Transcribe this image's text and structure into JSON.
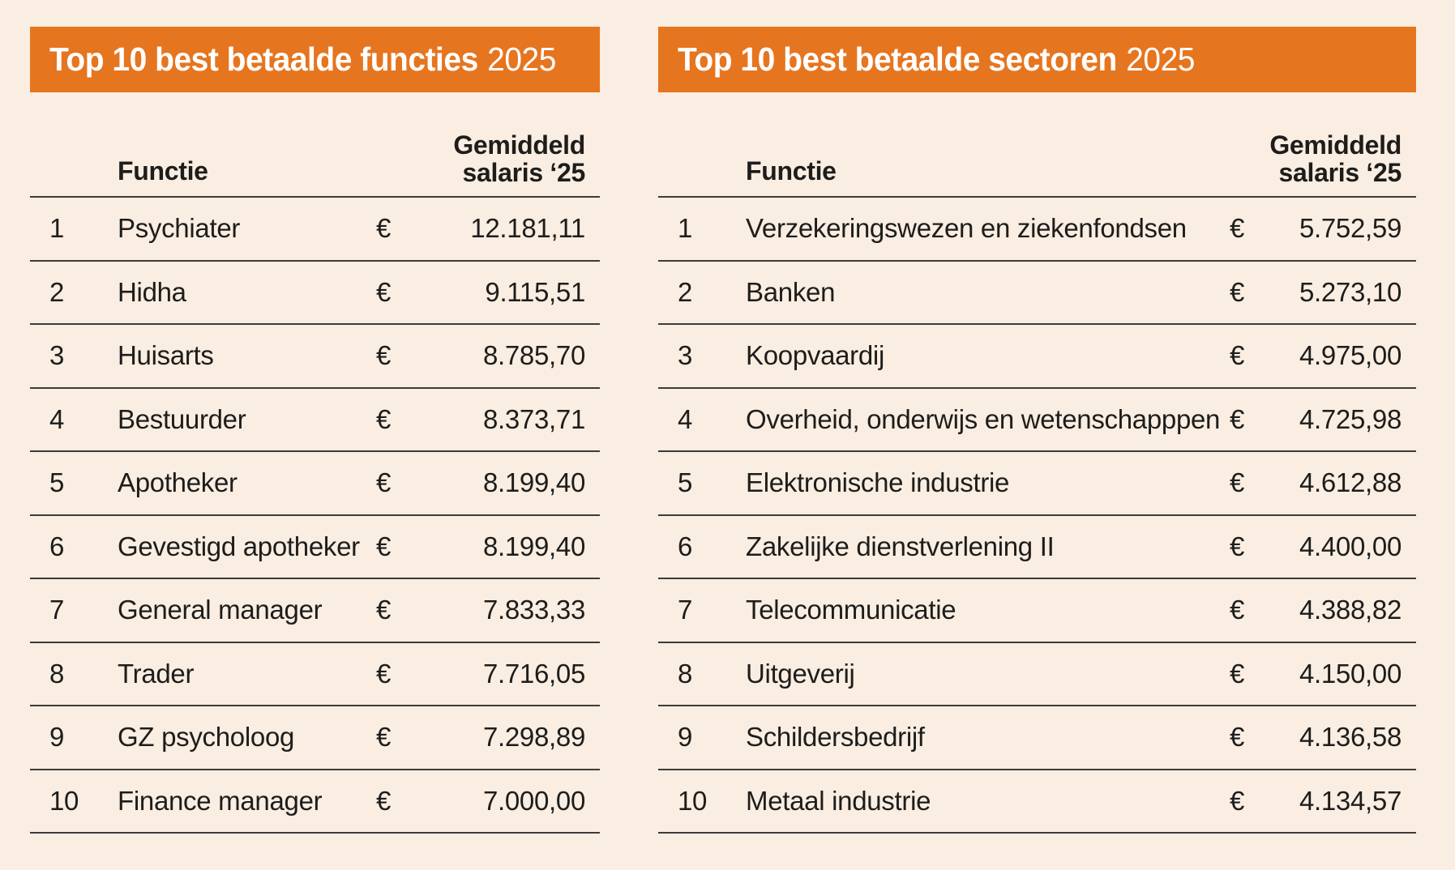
{
  "colors": {
    "accent_orange": "#e6751f",
    "background_cream": "#faede2",
    "text": "#1d1d1b",
    "divider_line": "#3d3b38",
    "title_text": "#ffffff"
  },
  "tables": [
    {
      "title": "Top 10 best betaalde functies",
      "year": "2025",
      "columns": {
        "name": "Functie",
        "salary_line1": "Gemiddeld",
        "salary_line2": "salaris ‘25"
      },
      "currency": "€",
      "rows": [
        {
          "rank": "1",
          "name": "Psychiater",
          "salary": "12.181,11"
        },
        {
          "rank": "2",
          "name": "Hidha",
          "salary": "9.115,51"
        },
        {
          "rank": "3",
          "name": "Huisarts",
          "salary": "8.785,70"
        },
        {
          "rank": "4",
          "name": "Bestuurder",
          "salary": "8.373,71"
        },
        {
          "rank": "5",
          "name": "Apotheker",
          "salary": "8.199,40"
        },
        {
          "rank": "6",
          "name": "Gevestigd apotheker",
          "salary": "8.199,40"
        },
        {
          "rank": "7",
          "name": "General manager",
          "salary": "7.833,33"
        },
        {
          "rank": "8",
          "name": "Trader",
          "salary": "7.716,05"
        },
        {
          "rank": "9",
          "name": "GZ psycholoog",
          "salary": "7.298,89"
        },
        {
          "rank": "10",
          "name": "Finance manager",
          "salary": "7.000,00"
        }
      ]
    },
    {
      "title": "Top 10 best betaalde sectoren",
      "year": "2025",
      "columns": {
        "name": "Functie",
        "salary_line1": "Gemiddeld",
        "salary_line2": "salaris ‘25"
      },
      "currency": "€",
      "rows": [
        {
          "rank": "1",
          "name": "Verzekeringswezen en ziekenfondsen",
          "salary": "5.752,59"
        },
        {
          "rank": "2",
          "name": "Banken",
          "salary": "5.273,10"
        },
        {
          "rank": "3",
          "name": "Koopvaardij",
          "salary": "4.975,00"
        },
        {
          "rank": "4",
          "name": "Overheid, onderwijs en wetenschapppen",
          "salary": "4.725,98"
        },
        {
          "rank": "5",
          "name": "Elektronische industrie",
          "salary": "4.612,88"
        },
        {
          "rank": "6",
          "name": "Zakelijke dienstverlening II",
          "salary": "4.400,00"
        },
        {
          "rank": "7",
          "name": "Telecommunicatie",
          "salary": "4.388,82"
        },
        {
          "rank": "8",
          "name": "Uitgeverij",
          "salary": "4.150,00"
        },
        {
          "rank": "9",
          "name": "Schildersbedrijf",
          "salary": "4.136,58"
        },
        {
          "rank": "10",
          "name": "Metaal industrie",
          "salary": "4.134,57"
        }
      ]
    }
  ],
  "chart_data": [
    {
      "type": "table",
      "title": "Top 10 best betaalde functies 2025",
      "columns": [
        "rank",
        "Functie",
        "Gemiddeld salaris ‘25 (EUR)"
      ],
      "rows": [
        [
          1,
          "Psychiater",
          12181.11
        ],
        [
          2,
          "Hidha",
          9115.51
        ],
        [
          3,
          "Huisarts",
          8785.7
        ],
        [
          4,
          "Bestuurder",
          8373.71
        ],
        [
          5,
          "Apotheker",
          8199.4
        ],
        [
          6,
          "Gevestigd apotheker",
          8199.4
        ],
        [
          7,
          "General manager",
          7833.33
        ],
        [
          8,
          "Trader",
          7716.05
        ],
        [
          9,
          "GZ psycholoog",
          7298.89
        ],
        [
          10,
          "Finance manager",
          7000.0
        ]
      ]
    },
    {
      "type": "table",
      "title": "Top 10 best betaalde sectoren 2025",
      "columns": [
        "rank",
        "Functie",
        "Gemiddeld salaris ‘25 (EUR)"
      ],
      "rows": [
        [
          1,
          "Verzekeringswezen en ziekenfondsen",
          5752.59
        ],
        [
          2,
          "Banken",
          5273.1
        ],
        [
          3,
          "Koopvaardij",
          4975.0
        ],
        [
          4,
          "Overheid, onderwijs en wetenschapppen",
          4725.98
        ],
        [
          5,
          "Elektronische industrie",
          4612.88
        ],
        [
          6,
          "Zakelijke dienstverlening II",
          4400.0
        ],
        [
          7,
          "Telecommunicatie",
          4388.82
        ],
        [
          8,
          "Uitgeverij",
          4150.0
        ],
        [
          9,
          "Schildersbedrijf",
          4136.58
        ],
        [
          10,
          "Metaal industrie",
          4134.57
        ]
      ]
    }
  ]
}
